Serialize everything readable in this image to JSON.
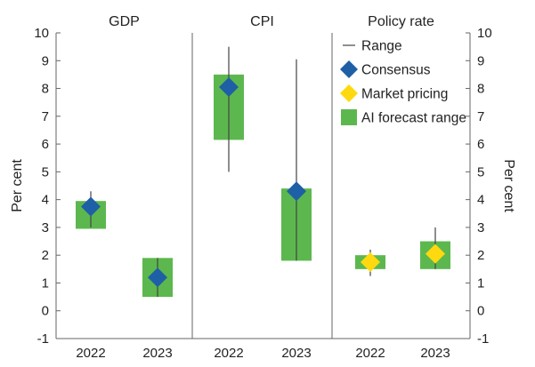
{
  "chart_data": {
    "type": "range",
    "ylim": [
      -1,
      10
    ],
    "yticks": [
      "10",
      "9",
      "8",
      "7",
      "6",
      "5",
      "4",
      "3",
      "2",
      "1",
      "0",
      "-1"
    ],
    "ylabel_left": "Per cent",
    "ylabel_right": "Per cent",
    "grid": false,
    "legend_position": "top-right",
    "legend": [
      {
        "key": "range",
        "label": "Range"
      },
      {
        "key": "consensus",
        "label": "Consensus"
      },
      {
        "key": "market",
        "label": "Market pricing"
      },
      {
        "key": "ai",
        "label": "AI forecast range"
      }
    ],
    "panels": [
      {
        "title": "GDP",
        "points": [
          {
            "year": "2022",
            "range": [
              3.0,
              4.3
            ],
            "marker": "consensus",
            "value": 3.75,
            "ai_range": [
              2.95,
              3.95
            ]
          },
          {
            "year": "2023",
            "range": [
              0.5,
              1.9
            ],
            "marker": "consensus",
            "value": 1.2,
            "ai_range": [
              0.5,
              1.9
            ]
          }
        ]
      },
      {
        "title": "CPI",
        "points": [
          {
            "year": "2022",
            "range": [
              5.0,
              9.5
            ],
            "marker": "consensus",
            "value": 8.05,
            "ai_range": [
              6.15,
              8.5
            ]
          },
          {
            "year": "2023",
            "range": [
              1.8,
              9.05
            ],
            "marker": "consensus",
            "value": 4.3,
            "ai_range": [
              1.8,
              4.4
            ]
          }
        ]
      },
      {
        "title": "Policy rate",
        "points": [
          {
            "year": "2022",
            "range": [
              1.25,
              2.2
            ],
            "marker": "market",
            "value": 1.75,
            "ai_range": [
              1.5,
              2.0
            ]
          },
          {
            "year": "2023",
            "range": [
              1.5,
              3.0
            ],
            "marker": "market",
            "value": 2.05,
            "ai_range": [
              1.5,
              2.5
            ]
          }
        ]
      }
    ]
  },
  "colors": {
    "consensus": "#1f5fa6",
    "market": "#ffd90f",
    "ai": "#5cb84e",
    "range": "#444444",
    "axis": "#666666"
  }
}
